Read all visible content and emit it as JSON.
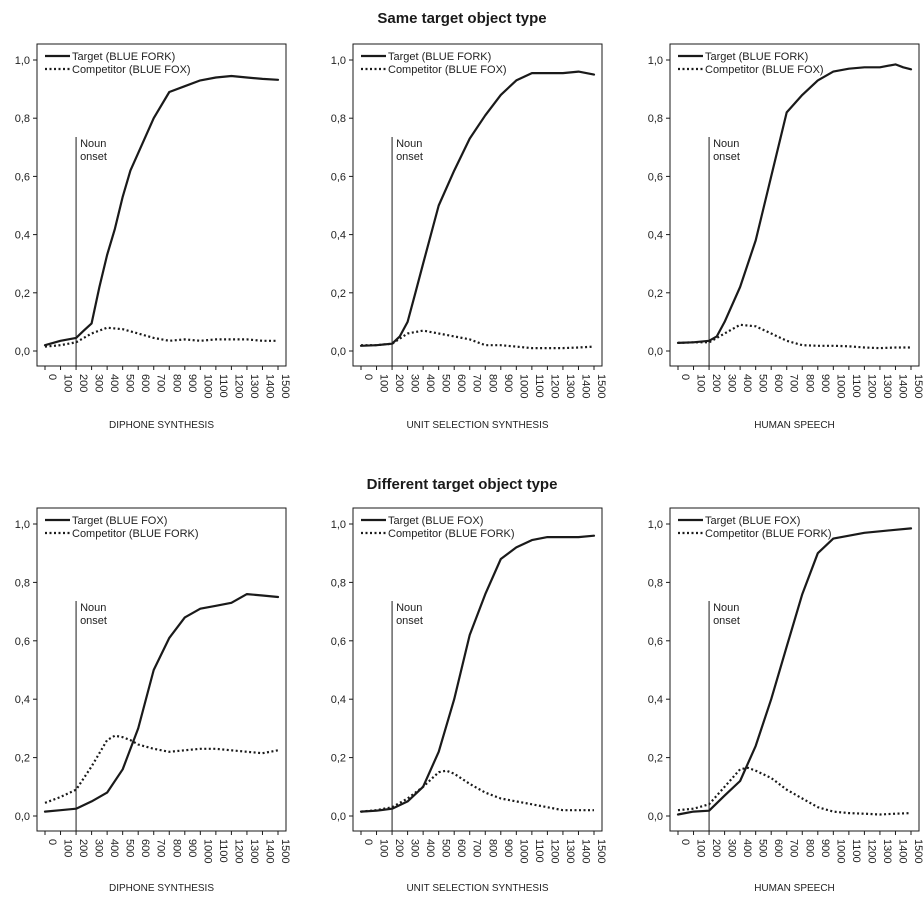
{
  "sections": [
    {
      "title": "Same target object type"
    },
    {
      "title": "Different target object type"
    }
  ],
  "chart_data": [
    {
      "type": "line",
      "section": 0,
      "xlabel": "DIPHONE SYNTHESIS",
      "xticks": [
        0,
        100,
        200,
        300,
        400,
        500,
        600,
        700,
        800,
        900,
        1000,
        1100,
        1200,
        1300,
        1400,
        1500
      ],
      "yticks": [
        "0,0",
        "0,2",
        "0,4",
        "0,6",
        "0,8",
        "1,0"
      ],
      "xlim": [
        0,
        1500
      ],
      "ylim": [
        0,
        1
      ],
      "annotation": {
        "x": 200,
        "text": [
          "Noun",
          "onset"
        ]
      },
      "series": [
        {
          "name": "Target (BLUE FORK)",
          "style": "solid",
          "x": [
            0,
            100,
            200,
            250,
            300,
            350,
            400,
            450,
            500,
            550,
            600,
            700,
            800,
            900,
            1000,
            1100,
            1200,
            1300,
            1400,
            1500
          ],
          "y": [
            0.02,
            0.035,
            0.045,
            0.07,
            0.095,
            0.22,
            0.33,
            0.42,
            0.53,
            0.62,
            0.68,
            0.8,
            0.89,
            0.91,
            0.93,
            0.94,
            0.945,
            0.94,
            0.935,
            0.932
          ]
        },
        {
          "name": "Competitor (BLUE FOX)",
          "style": "dotted",
          "x": [
            0,
            100,
            200,
            300,
            400,
            500,
            600,
            700,
            800,
            900,
            1000,
            1100,
            1200,
            1300,
            1400,
            1500
          ],
          "y": [
            0.015,
            0.02,
            0.03,
            0.06,
            0.08,
            0.075,
            0.06,
            0.045,
            0.035,
            0.04,
            0.035,
            0.04,
            0.04,
            0.04,
            0.035,
            0.035
          ]
        }
      ]
    },
    {
      "type": "line",
      "section": 0,
      "xlabel": "UNIT SELECTION SYNTHESIS",
      "xticks": [
        0,
        100,
        200,
        300,
        400,
        500,
        600,
        700,
        800,
        900,
        1000,
        1100,
        1200,
        1300,
        1400,
        1500
      ],
      "yticks": [
        "0,0",
        "0,2",
        "0,4",
        "0,6",
        "0,8",
        "1,0"
      ],
      "xlim": [
        0,
        1500
      ],
      "ylim": [
        0,
        1
      ],
      "annotation": {
        "x": 200,
        "text": [
          "Noun",
          "onset"
        ]
      },
      "series": [
        {
          "name": "Target (BLUE FORK)",
          "style": "solid",
          "x": [
            0,
            100,
            200,
            250,
            300,
            350,
            400,
            450,
            500,
            600,
            700,
            800,
            900,
            1000,
            1100,
            1200,
            1300,
            1400,
            1500
          ],
          "y": [
            0.018,
            0.02,
            0.025,
            0.05,
            0.1,
            0.2,
            0.3,
            0.4,
            0.5,
            0.62,
            0.73,
            0.81,
            0.88,
            0.93,
            0.955,
            0.955,
            0.955,
            0.96,
            0.95
          ]
        },
        {
          "name": "Competitor (BLUE FOX)",
          "style": "dotted",
          "x": [
            0,
            100,
            200,
            300,
            400,
            500,
            600,
            700,
            800,
            900,
            1000,
            1100,
            1200,
            1300,
            1400,
            1500
          ],
          "y": [
            0.02,
            0.02,
            0.025,
            0.06,
            0.07,
            0.06,
            0.05,
            0.04,
            0.02,
            0.02,
            0.015,
            0.01,
            0.01,
            0.01,
            0.012,
            0.015
          ]
        }
      ]
    },
    {
      "type": "line",
      "section": 0,
      "xlabel": "HUMAN SPEECH",
      "xticks": [
        0,
        100,
        200,
        300,
        400,
        500,
        600,
        700,
        800,
        900,
        1000,
        1100,
        1200,
        1300,
        1400,
        1500
      ],
      "yticks": [
        "0,0",
        "0,2",
        "0,4",
        "0,6",
        "0,8",
        "1,0"
      ],
      "xlim": [
        0,
        1500
      ],
      "ylim": [
        0,
        1
      ],
      "annotation": {
        "x": 200,
        "text": [
          "Noun",
          "onset"
        ]
      },
      "series": [
        {
          "name": "Target (BLUE FORK)",
          "style": "solid",
          "x": [
            0,
            100,
            200,
            250,
            300,
            400,
            500,
            600,
            700,
            800,
            900,
            1000,
            1100,
            1200,
            1300,
            1400,
            1450,
            1500
          ],
          "y": [
            0.028,
            0.03,
            0.035,
            0.05,
            0.1,
            0.22,
            0.38,
            0.6,
            0.82,
            0.88,
            0.93,
            0.96,
            0.97,
            0.975,
            0.975,
            0.985,
            0.975,
            0.968
          ]
        },
        {
          "name": "Competitor (BLUE FOX)",
          "style": "dotted",
          "x": [
            0,
            100,
            200,
            300,
            400,
            500,
            600,
            700,
            800,
            900,
            1000,
            1100,
            1200,
            1300,
            1400,
            1500
          ],
          "y": [
            0.028,
            0.03,
            0.03,
            0.06,
            0.09,
            0.085,
            0.06,
            0.035,
            0.02,
            0.018,
            0.018,
            0.016,
            0.012,
            0.01,
            0.012,
            0.012
          ]
        }
      ]
    },
    {
      "type": "line",
      "section": 1,
      "xlabel": "DIPHONE SYNTHESIS",
      "xticks": [
        0,
        100,
        200,
        300,
        400,
        500,
        600,
        700,
        800,
        900,
        1000,
        1100,
        1200,
        1300,
        1400,
        1500
      ],
      "yticks": [
        "0,0",
        "0,2",
        "0,4",
        "0,6",
        "0,8",
        "1,0"
      ],
      "xlim": [
        0,
        1500
      ],
      "ylim": [
        0,
        1
      ],
      "annotation": {
        "x": 200,
        "text": [
          "Noun",
          "onset"
        ]
      },
      "series": [
        {
          "name": "Target (BLUE FOX)",
          "style": "solid",
          "x": [
            0,
            100,
            200,
            300,
            400,
            500,
            600,
            700,
            800,
            900,
            1000,
            1100,
            1200,
            1300,
            1400,
            1500
          ],
          "y": [
            0.015,
            0.02,
            0.025,
            0.05,
            0.08,
            0.16,
            0.3,
            0.5,
            0.61,
            0.68,
            0.71,
            0.72,
            0.73,
            0.76,
            0.755,
            0.75
          ]
        },
        {
          "name": "Competitor (BLUE FORK)",
          "style": "dotted",
          "x": [
            0,
            100,
            200,
            300,
            400,
            450,
            500,
            550,
            600,
            700,
            800,
            900,
            1000,
            1100,
            1200,
            1300,
            1400,
            1500
          ],
          "y": [
            0.045,
            0.065,
            0.09,
            0.17,
            0.26,
            0.275,
            0.27,
            0.26,
            0.245,
            0.23,
            0.22,
            0.225,
            0.23,
            0.23,
            0.225,
            0.22,
            0.215,
            0.225
          ]
        }
      ]
    },
    {
      "type": "line",
      "section": 1,
      "xlabel": "UNIT SELECTION SYNTHESIS",
      "xticks": [
        0,
        100,
        200,
        300,
        400,
        500,
        600,
        700,
        800,
        900,
        1000,
        1100,
        1200,
        1300,
        1400,
        1500
      ],
      "yticks": [
        "0,0",
        "0,2",
        "0,4",
        "0,6",
        "0,8",
        "1,0"
      ],
      "xlim": [
        0,
        1500
      ],
      "ylim": [
        0,
        1
      ],
      "annotation": {
        "x": 200,
        "text": [
          "Noun",
          "onset"
        ]
      },
      "series": [
        {
          "name": "Target (BLUE FOX)",
          "style": "solid",
          "x": [
            0,
            100,
            200,
            300,
            400,
            500,
            600,
            700,
            800,
            900,
            1000,
            1100,
            1200,
            1300,
            1400,
            1500
          ],
          "y": [
            0.015,
            0.018,
            0.025,
            0.05,
            0.1,
            0.22,
            0.4,
            0.62,
            0.76,
            0.88,
            0.92,
            0.945,
            0.955,
            0.955,
            0.955,
            0.96
          ]
        },
        {
          "name": "Competitor (BLUE FORK)",
          "style": "dotted",
          "x": [
            0,
            100,
            200,
            300,
            400,
            500,
            550,
            600,
            700,
            800,
            900,
            1000,
            1100,
            1200,
            1300,
            1400,
            1500
          ],
          "y": [
            0.015,
            0.02,
            0.03,
            0.06,
            0.1,
            0.15,
            0.155,
            0.145,
            0.11,
            0.08,
            0.06,
            0.05,
            0.04,
            0.03,
            0.02,
            0.02,
            0.02
          ]
        }
      ]
    },
    {
      "type": "line",
      "section": 1,
      "xlabel": "HUMAN SPEECH",
      "xticks": [
        0,
        100,
        200,
        300,
        400,
        500,
        600,
        700,
        800,
        900,
        1000,
        1100,
        1200,
        1300,
        1400,
        1500
      ],
      "yticks": [
        "0,0",
        "0,2",
        "0,4",
        "0,6",
        "0,8",
        "1,0"
      ],
      "xlim": [
        0,
        1500
      ],
      "ylim": [
        0,
        1
      ],
      "annotation": {
        "x": 200,
        "text": [
          "Noun",
          "onset"
        ]
      },
      "series": [
        {
          "name": "Target (BLUE FOX)",
          "style": "solid",
          "x": [
            0,
            100,
            200,
            300,
            400,
            500,
            600,
            700,
            800,
            900,
            1000,
            1100,
            1200,
            1300,
            1400,
            1500
          ],
          "y": [
            0.005,
            0.015,
            0.018,
            0.07,
            0.12,
            0.24,
            0.4,
            0.58,
            0.76,
            0.9,
            0.95,
            0.96,
            0.97,
            0.975,
            0.98,
            0.985
          ]
        },
        {
          "name": "Competitor (BLUE FORK)",
          "style": "dotted",
          "x": [
            0,
            100,
            200,
            300,
            400,
            450,
            500,
            600,
            700,
            800,
            900,
            1000,
            1100,
            1200,
            1300,
            1400,
            1500
          ],
          "y": [
            0.02,
            0.025,
            0.04,
            0.1,
            0.16,
            0.165,
            0.155,
            0.13,
            0.09,
            0.06,
            0.03,
            0.015,
            0.01,
            0.008,
            0.005,
            0.008,
            0.01
          ]
        }
      ]
    }
  ]
}
